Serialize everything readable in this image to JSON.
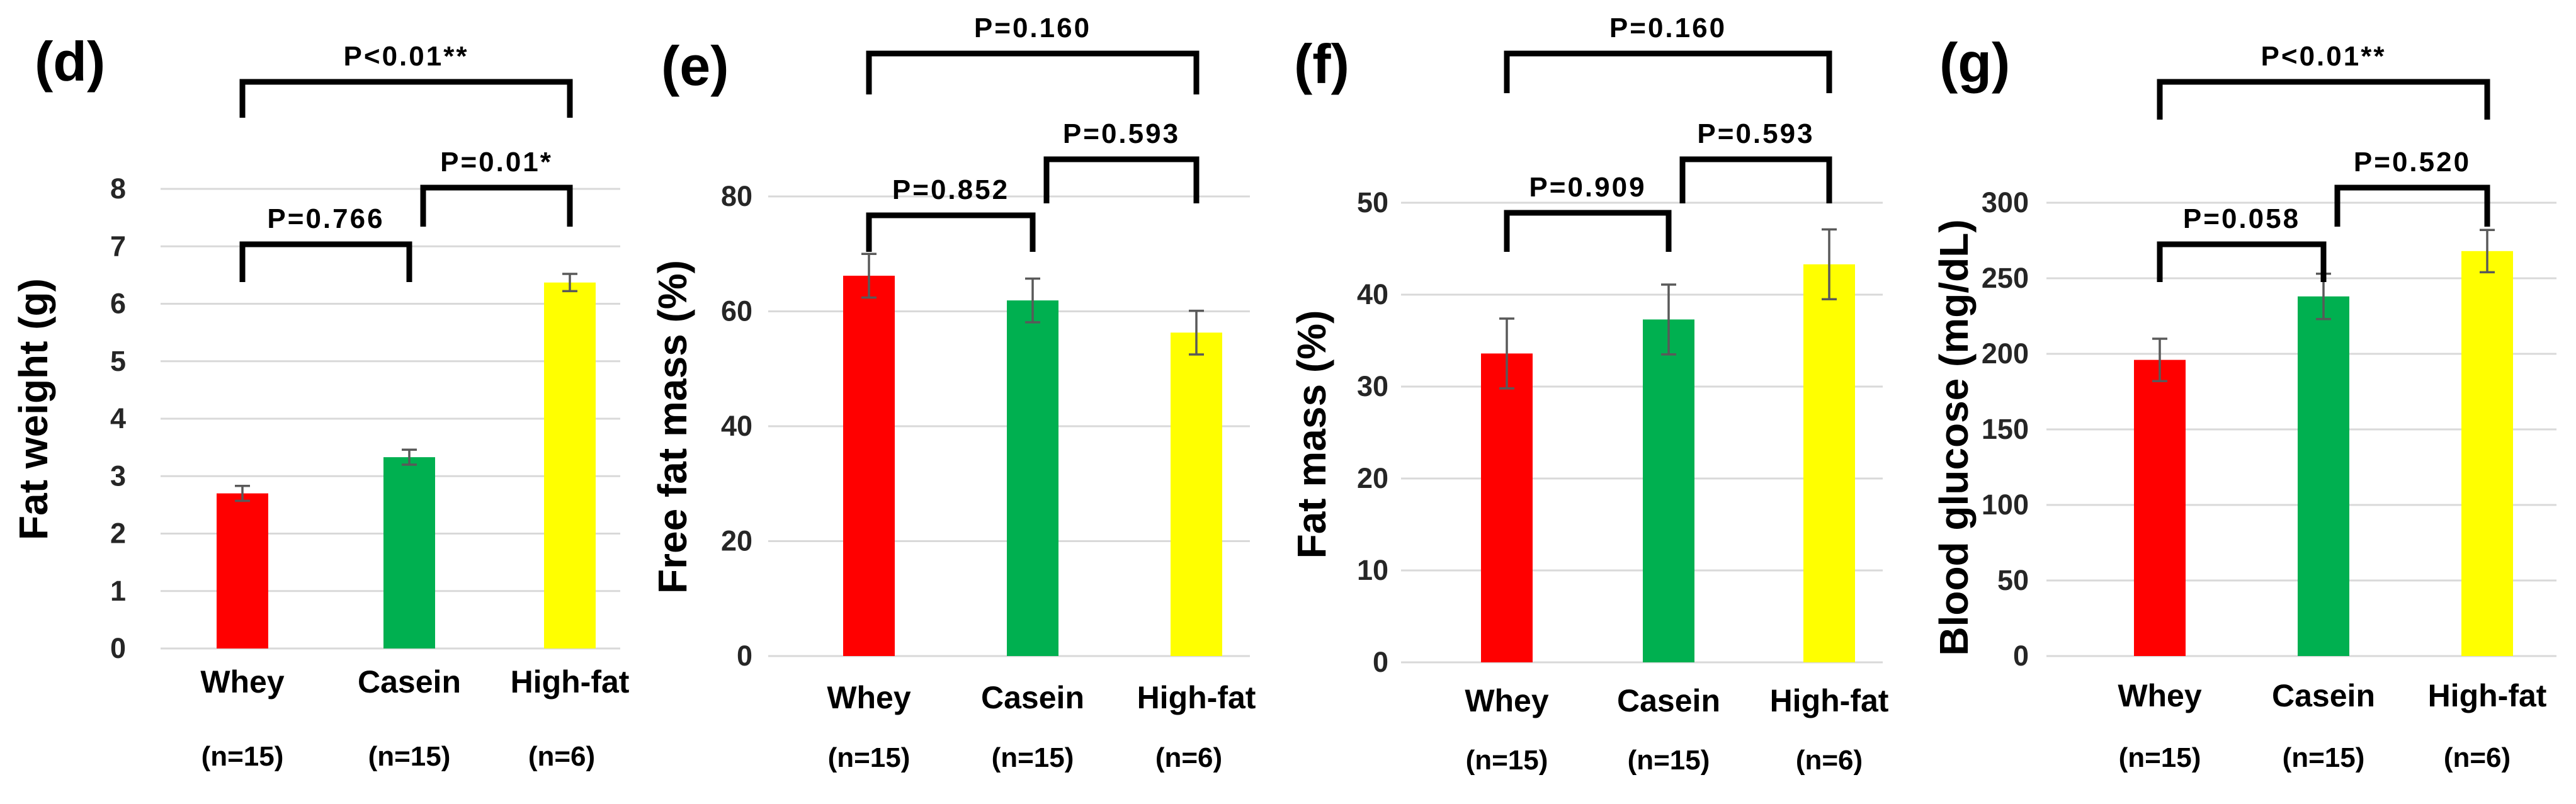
{
  "colors": {
    "Whey": "#ff0000",
    "Casein": "#00b050",
    "High-fat": "#ffff00"
  },
  "chart_data": [
    {
      "type": "bar",
      "panel_label": "(d)",
      "ylabel": "Fat weight (g)",
      "ylim": [
        0,
        8
      ],
      "yticks": [
        "0",
        "1",
        "2",
        "3",
        "4",
        "5",
        "6",
        "7",
        "8"
      ],
      "categories": [
        "Whey",
        "Casein",
        "High-fat"
      ],
      "n_labels": [
        "(n=15)",
        "(n=15)",
        "(n=6)"
      ],
      "values": [
        2.7,
        3.33,
        6.37
      ],
      "errors": [
        0.13,
        0.13,
        0.15
      ],
      "comparisons": [
        {
          "from": 0,
          "to": 1,
          "label": "P=0.766"
        },
        {
          "from": 1,
          "to": 2,
          "label": "P=0.01*"
        },
        {
          "from": 0,
          "to": 2,
          "label": "P<0.01**"
        }
      ]
    },
    {
      "type": "bar",
      "panel_label": "(e)",
      "ylabel": "Free fat mass (%)",
      "ylim": [
        0,
        80
      ],
      "yticks": [
        "0",
        "20",
        "40",
        "60",
        "80"
      ],
      "categories": [
        "Whey",
        "Casein",
        "High-fat"
      ],
      "n_labels": [
        "(n=15)",
        "(n=15)",
        "(n=6)"
      ],
      "values": [
        66.2,
        61.9,
        56.3
      ],
      "errors": [
        3.8,
        3.8,
        3.8
      ],
      "comparisons": [
        {
          "from": 0,
          "to": 1,
          "label": "P=0.852"
        },
        {
          "from": 1,
          "to": 2,
          "label": "P=0.593"
        },
        {
          "from": 0,
          "to": 2,
          "label": "P=0.160"
        }
      ]
    },
    {
      "type": "bar",
      "panel_label": "(f)",
      "ylabel": "Fat mass (%)",
      "ylim": [
        0,
        50
      ],
      "yticks": [
        "0",
        "10",
        "20",
        "30",
        "40",
        "50"
      ],
      "categories": [
        "Whey",
        "Casein",
        "High-fat"
      ],
      "n_labels": [
        "(n=15)",
        "(n=15)",
        "(n=6)"
      ],
      "values": [
        33.6,
        37.3,
        43.3
      ],
      "errors": [
        3.8,
        3.8,
        3.8
      ],
      "comparisons": [
        {
          "from": 0,
          "to": 1,
          "label": "P=0.909"
        },
        {
          "from": 1,
          "to": 2,
          "label": "P=0.593"
        },
        {
          "from": 0,
          "to": 2,
          "label": "P=0.160"
        }
      ]
    },
    {
      "type": "bar",
      "panel_label": "(g)",
      "ylabel": "Blood glucose (mg/dL)",
      "ylim": [
        0,
        300
      ],
      "yticks": [
        "0",
        "50",
        "100",
        "150",
        "200",
        "250",
        "300"
      ],
      "categories": [
        "Whey",
        "Casein",
        "High-fat"
      ],
      "n_labels": [
        "(n=15)",
        "(n=15)",
        "(n=6)"
      ],
      "values": [
        196,
        238,
        268
      ],
      "errors": [
        14,
        15,
        14
      ],
      "comparisons": [
        {
          "from": 0,
          "to": 1,
          "label": "P=0.058"
        },
        {
          "from": 1,
          "to": 2,
          "label": "P=0.520"
        },
        {
          "from": 0,
          "to": 2,
          "label": "P<0.01**"
        }
      ]
    }
  ]
}
